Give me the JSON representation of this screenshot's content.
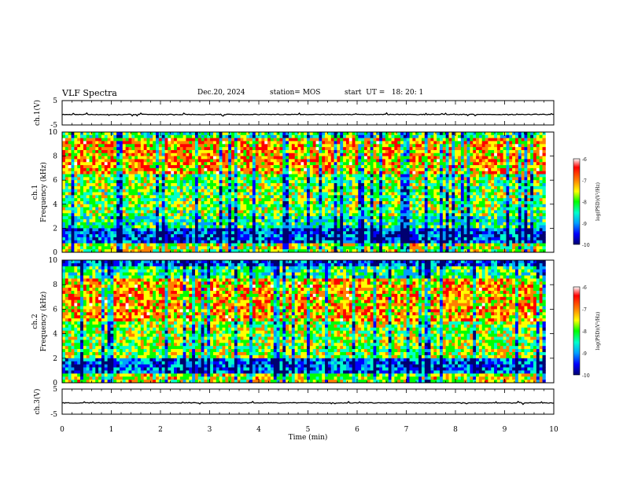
{
  "header": {
    "title": "VLF Spectra",
    "date": "Dec.20, 2024",
    "station": "station= MOS",
    "start_ut": "start  UT =   18: 20: 1"
  },
  "chart_data": [
    {
      "type": "line",
      "panel": "ch1-waveform",
      "ylabel": "ch.1(V)",
      "ylim": [
        -5,
        5
      ],
      "yticks": [
        "5",
        "-5"
      ],
      "baseline": -0.7,
      "xlim": [
        0,
        10
      ]
    },
    {
      "type": "heatmap",
      "panel": "ch1-spectrogram",
      "ylabel": [
        "ch.1",
        "Frequency (kHz)"
      ],
      "ylim": [
        0,
        10
      ],
      "yticks": [
        "0",
        "2",
        "4",
        "6",
        "8",
        "10"
      ],
      "xlim": [
        0,
        10
      ],
      "data_end_min": 9.83,
      "colorbar": {
        "label": "log(PSD)(V²/Hz)",
        "range": [
          -10,
          -6
        ],
        "ticks": [
          "-6",
          "-7",
          "-8",
          "-9",
          "-10"
        ]
      }
    },
    {
      "type": "heatmap",
      "panel": "ch2-spectrogram",
      "ylabel": [
        "ch.2",
        "Frequency (kHz)"
      ],
      "ylim": [
        0,
        10
      ],
      "yticks": [
        "0",
        "2",
        "4",
        "6",
        "8",
        "10"
      ],
      "xlim": [
        0,
        10
      ],
      "data_end_min": 9.83,
      "colorbar": {
        "label": "log(PSD)(V²/Hz)",
        "range": [
          -10,
          -6
        ],
        "ticks": [
          "-6",
          "-7",
          "-8",
          "-9",
          "-10"
        ]
      }
    },
    {
      "type": "line",
      "panel": "ch3-waveform",
      "ylabel": "ch.3(V)",
      "ylim": [
        -5,
        5
      ],
      "yticks": [
        "5",
        "-5"
      ],
      "baseline": -0.5,
      "xlim": [
        0,
        10
      ]
    }
  ],
  "x_axis": {
    "label": "Time  (min)",
    "ticks": [
      "0",
      "1",
      "2",
      "3",
      "4",
      "5",
      "6",
      "7",
      "8",
      "9",
      "10"
    ]
  },
  "colors": {
    "colormap": [
      "#000070",
      "#0000ff",
      "#00a0ff",
      "#00ffcc",
      "#00ff00",
      "#ffff00",
      "#ff8000",
      "#ff0000",
      "#ffffff"
    ]
  }
}
